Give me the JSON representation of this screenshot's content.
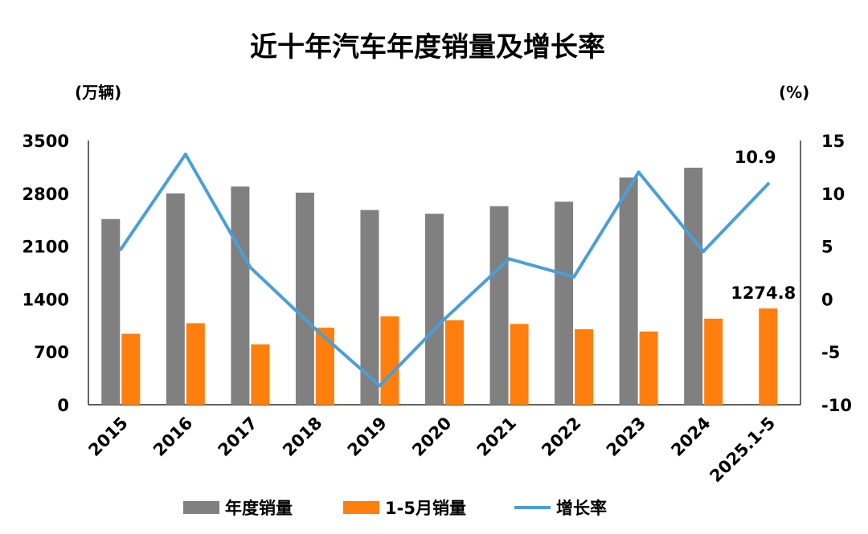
{
  "chart_data": {
    "type": "bar",
    "title": "近十年汽车年度销量及增长率",
    "ylabel_left": "(万辆)",
    "ylabel_right": "(%)",
    "categories": [
      "2015",
      "2016",
      "2017",
      "2018",
      "2019",
      "2020",
      "2021",
      "2022",
      "2023",
      "2024",
      "2025.1-5"
    ],
    "ylim_left": [
      0,
      3500
    ],
    "yticks_left": [
      0,
      700,
      1400,
      2100,
      2800,
      3500
    ],
    "ylim_right": [
      -10,
      15
    ],
    "yticks_right": [
      -10,
      -5,
      0,
      5,
      10,
      15
    ],
    "series": [
      {
        "name": "年度销量",
        "type": "bar",
        "axis": "left",
        "color": "#808080",
        "values": [
          2460,
          2800,
          2890,
          2810,
          2580,
          2530,
          2630,
          2690,
          3010,
          3140,
          null
        ]
      },
      {
        "name": "1-5月销量",
        "type": "bar",
        "axis": "left",
        "color": "#ff7f0e",
        "values": [
          940,
          1080,
          800,
          1020,
          1170,
          1120,
          1070,
          1000,
          970,
          1140,
          1274.8
        ]
      },
      {
        "name": "增长率",
        "type": "line",
        "axis": "right",
        "color": "#4a9fd8",
        "values": [
          4.7,
          13.7,
          3.0,
          -2.8,
          -8.2,
          -1.9,
          3.8,
          2.1,
          12.0,
          4.5,
          10.9
        ]
      }
    ],
    "data_labels": [
      {
        "series": "1-5月销量",
        "category": "2025.1-5",
        "text": "1274.8"
      },
      {
        "series": "增长率",
        "category": "2025.1-5",
        "text": "10.9"
      }
    ],
    "legend_position": "bottom",
    "grid": false
  }
}
